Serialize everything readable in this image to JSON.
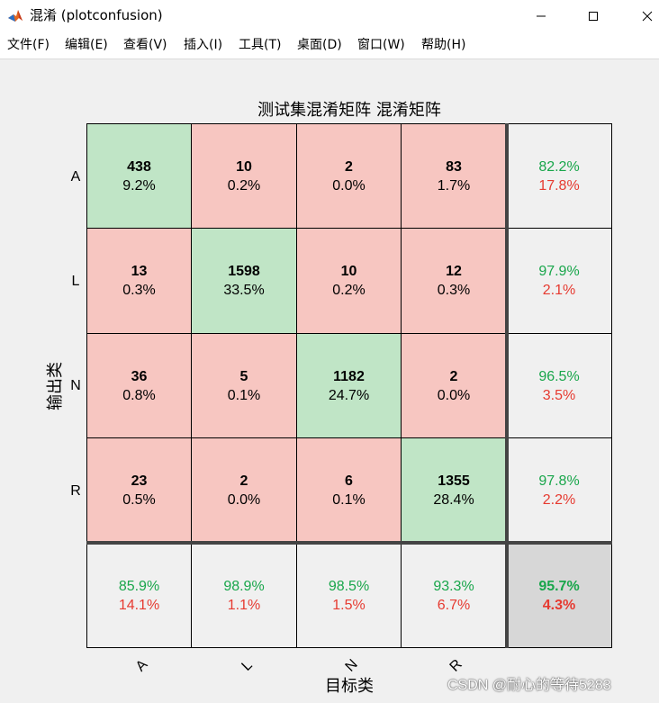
{
  "window": {
    "title": "混淆 (plotconfusion)",
    "icon": "matlab-icon"
  },
  "menu": {
    "items": [
      "文件(F)",
      "编辑(E)",
      "查看(V)",
      "插入(I)",
      "工具(T)",
      "桌面(D)",
      "窗口(W)",
      "帮助(H)"
    ]
  },
  "chart_data": {
    "type": "table",
    "title": "测试集混淆矩阵 混淆矩阵",
    "xlabel": "目标类",
    "ylabel": "输出类",
    "classes": [
      "A",
      "L",
      "N",
      "R"
    ],
    "matrix": [
      [
        {
          "count": "438",
          "pct": "9.2%"
        },
        {
          "count": "10",
          "pct": "0.2%"
        },
        {
          "count": "2",
          "pct": "0.0%"
        },
        {
          "count": "83",
          "pct": "1.7%"
        }
      ],
      [
        {
          "count": "13",
          "pct": "0.3%"
        },
        {
          "count": "1598",
          "pct": "33.5%"
        },
        {
          "count": "10",
          "pct": "0.2%"
        },
        {
          "count": "12",
          "pct": "0.3%"
        }
      ],
      [
        {
          "count": "36",
          "pct": "0.8%"
        },
        {
          "count": "5",
          "pct": "0.1%"
        },
        {
          "count": "1182",
          "pct": "24.7%"
        },
        {
          "count": "2",
          "pct": "0.0%"
        }
      ],
      [
        {
          "count": "23",
          "pct": "0.5%"
        },
        {
          "count": "2",
          "pct": "0.0%"
        },
        {
          "count": "6",
          "pct": "0.1%"
        },
        {
          "count": "1355",
          "pct": "28.4%"
        }
      ]
    ],
    "row_summary": [
      {
        "correct": "82.2%",
        "wrong": "17.8%"
      },
      {
        "correct": "97.9%",
        "wrong": "2.1%"
      },
      {
        "correct": "96.5%",
        "wrong": "3.5%"
      },
      {
        "correct": "97.8%",
        "wrong": "2.2%"
      }
    ],
    "col_summary": [
      {
        "correct": "85.9%",
        "wrong": "14.1%"
      },
      {
        "correct": "98.9%",
        "wrong": "1.1%"
      },
      {
        "correct": "98.5%",
        "wrong": "1.5%"
      },
      {
        "correct": "93.3%",
        "wrong": "6.7%"
      }
    ],
    "overall": {
      "correct": "95.7%",
      "wrong": "4.3%"
    },
    "colors": {
      "diagonal": "#c0e5c6",
      "off_diagonal": "#f7c6c1",
      "summary": "#f0f0f0",
      "overall": "#d7d7d7",
      "correct_text": "#19a64b",
      "wrong_text": "#e63a30"
    }
  },
  "watermark": "CSDN @耐心的等待5283"
}
